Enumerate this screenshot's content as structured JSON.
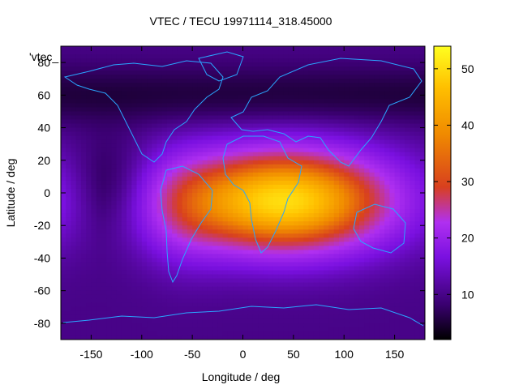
{
  "chart_data": {
    "type": "heatmap",
    "title": "VTEC / TECU 19971114_318.45000",
    "series_label": "'vtec_",
    "xlabel": "Longitude / deg",
    "ylabel": "Latitude / deg",
    "xlim": [
      -180,
      180
    ],
    "ylim": [
      -90,
      90
    ],
    "x_ticks": [
      -150,
      -100,
      -50,
      0,
      50,
      100,
      150
    ],
    "y_ticks": [
      -80,
      -60,
      -40,
      -20,
      0,
      20,
      40,
      60,
      80
    ],
    "colorbar": {
      "range": [
        2,
        54
      ],
      "ticks": [
        10,
        20,
        30,
        40,
        50
      ],
      "palette": [
        "#000000",
        "#3a0070",
        "#7a10e0",
        "#b030f0",
        "#d8401e",
        "#f08a00",
        "#ffc000",
        "#ffff20"
      ]
    },
    "field_model": {
      "description": "equatorial anomaly peaked over Africa/Indian Ocean; low values at high latitudes",
      "peak_value": 50,
      "background_value": 11,
      "peak_lon": 40,
      "peak_lat": -5
    }
  }
}
